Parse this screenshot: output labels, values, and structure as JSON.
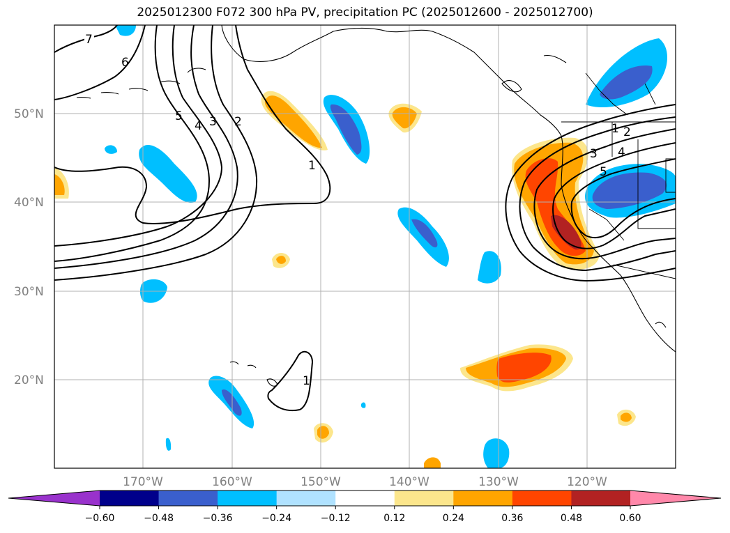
{
  "title": "2025012300 F072 300 hPa PV, precipitation PC (2025012600 - 2025012700)",
  "lat_labels": [
    "50°N",
    "40°N",
    "30°N",
    "20°N"
  ],
  "lon_labels": [
    "170°W",
    "160°W",
    "150°W",
    "140°W",
    "130°W",
    "120°W"
  ],
  "colorbar": {
    "ticks": [
      "−0.60",
      "−0.48",
      "−0.36",
      "−0.24",
      "−0.12",
      "0.12",
      "0.24",
      "0.36",
      "0.48",
      "0.60"
    ],
    "colors": [
      "#9932cc",
      "#00008b",
      "#3a5fcd",
      "#00bfff",
      "#b0e2ff",
      "#ffffff",
      "#fce68c",
      "#ffa500",
      "#ff4500",
      "#b22222",
      "#ff88aa"
    ],
    "extend": "both"
  },
  "contour_labels": [
    "7",
    "6",
    "5",
    "4",
    "3",
    "2",
    "1",
    "1",
    "1",
    "2",
    "3",
    "4",
    "5"
  ],
  "chart_data": {
    "type": "map",
    "variable_contours": "300 hPa PV",
    "variable_filled": "precipitation PC",
    "lat_range": [
      10,
      60
    ],
    "lon_range": [
      -180,
      -110
    ],
    "contour_levels": [
      1,
      2,
      3,
      4,
      5,
      6,
      7
    ],
    "fill_levels": [
      -0.6,
      -0.48,
      -0.36,
      -0.24,
      -0.12,
      0.12,
      0.24,
      0.36,
      0.48,
      0.6
    ],
    "grid": true
  }
}
